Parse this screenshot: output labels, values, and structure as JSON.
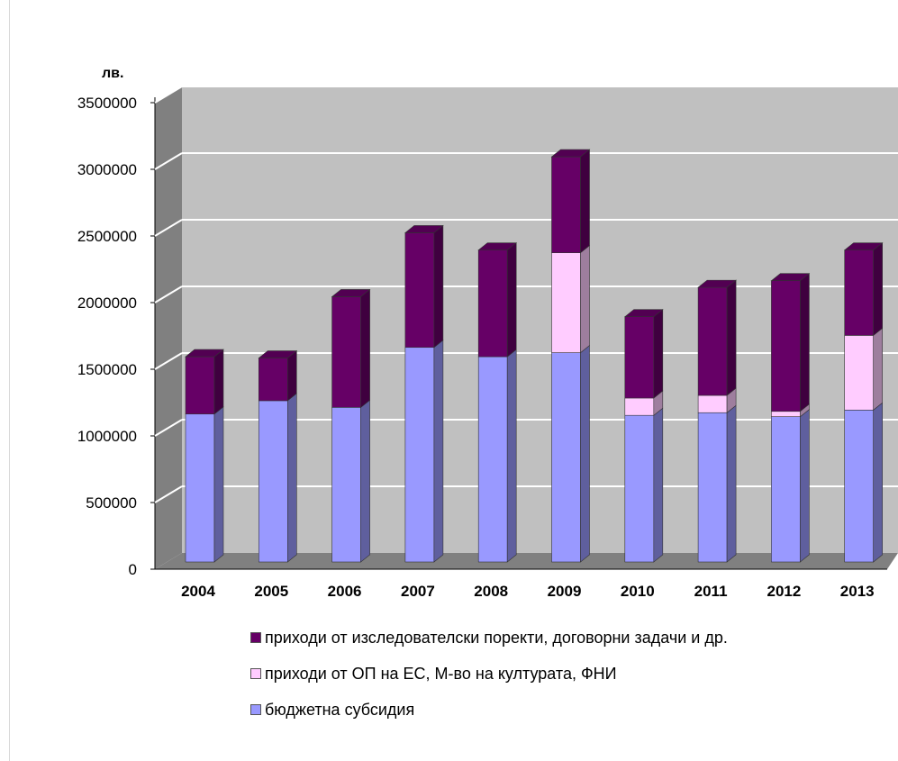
{
  "chart_data": {
    "type": "bar",
    "stacked": true,
    "three_d": true,
    "unit_label": "лв.",
    "categories": [
      "2004",
      "2005",
      "2006",
      "2007",
      "2008",
      "2009",
      "2010",
      "2011",
      "2012",
      "2013"
    ],
    "series": [
      {
        "name": "бюджетна субсидия",
        "color": "#9999ff",
        "values": [
          1110000,
          1210000,
          1160000,
          1610000,
          1540000,
          1570000,
          1100000,
          1120000,
          1090000,
          1140000
        ]
      },
      {
        "name": "приходи от ОП на ЕС, М-во на културата, ФНИ",
        "color": "#ffccff",
        "values": [
          0,
          0,
          0,
          0,
          0,
          750000,
          130000,
          130000,
          40000,
          560000
        ]
      },
      {
        "name": "приходи от изследователски поректи, договорни задачи и др.",
        "color": "#660066",
        "values": [
          430000,
          320000,
          830000,
          860000,
          800000,
          720000,
          610000,
          810000,
          980000,
          640000
        ]
      }
    ],
    "y_axis": {
      "min": 0,
      "max": 3500000,
      "ticks": [
        "0",
        "500000",
        "1000000",
        "1500000",
        "2000000",
        "2500000",
        "3000000",
        "3500000"
      ]
    },
    "grid": true,
    "legend_position": "bottom",
    "legend_order": [
      2,
      1,
      0
    ]
  }
}
